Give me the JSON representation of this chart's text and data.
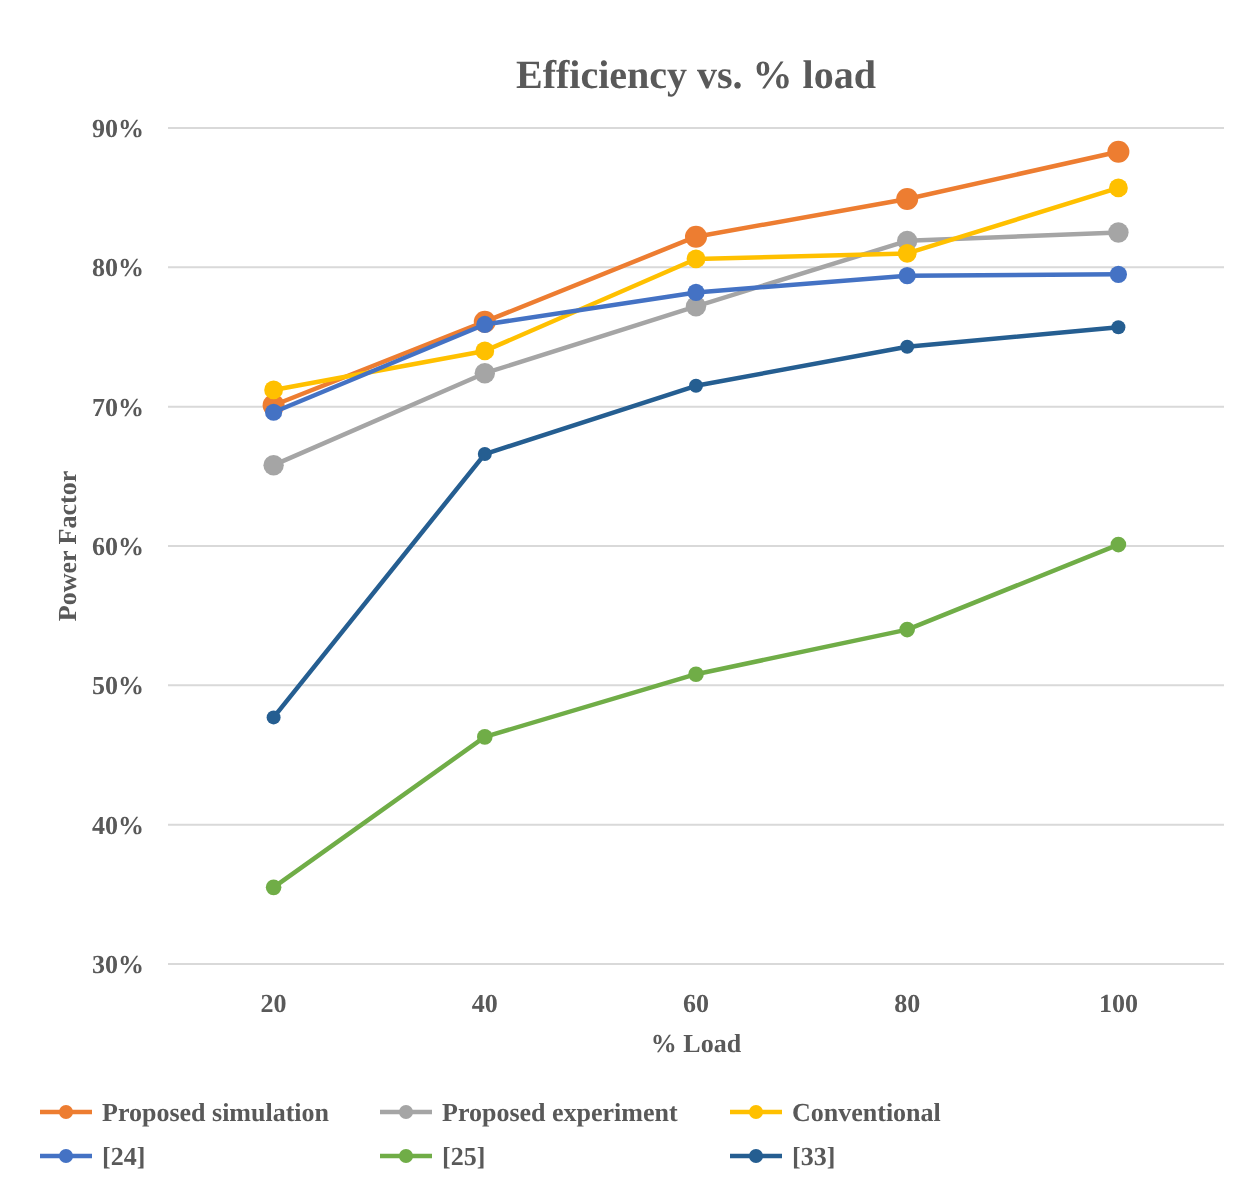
{
  "chart_data": {
    "type": "line",
    "title": "Efficiency vs. % load",
    "xlabel": "% Load",
    "ylabel": "Power Factor",
    "categories": [
      "20",
      "40",
      "60",
      "80",
      "100"
    ],
    "series": [
      {
        "name": "Proposed simulation",
        "color": "#ed7d31",
        "values": [
          70.1,
          76.1,
          82.2,
          84.9,
          88.3
        ]
      },
      {
        "name": "Proposed experiment",
        "color": "#a5a5a5",
        "values": [
          65.8,
          72.4,
          77.2,
          81.9,
          82.5
        ]
      },
      {
        "name": "Conventional",
        "color": "#ffc000",
        "values": [
          71.2,
          74.0,
          80.6,
          81.0,
          85.7
        ]
      },
      {
        "name": "[24]",
        "color": "#4472c4",
        "values": [
          69.6,
          75.9,
          78.2,
          79.4,
          79.5
        ]
      },
      {
        "name": "[25]",
        "color": "#70ad47",
        "values": [
          35.5,
          46.3,
          50.8,
          54.0,
          60.1
        ]
      },
      {
        "name": "[33]",
        "color": "#255e91",
        "values": [
          47.7,
          66.6,
          71.5,
          74.3,
          75.7
        ]
      }
    ],
    "ylim": [
      30,
      90
    ],
    "yticks": [
      {
        "value": 30,
        "label": "30%"
      },
      {
        "value": 40,
        "label": "40%"
      },
      {
        "value": 50,
        "label": "50%"
      },
      {
        "value": 60,
        "label": "60%"
      },
      {
        "value": 70,
        "label": "70%"
      },
      {
        "value": 80,
        "label": "80%"
      },
      {
        "value": 90,
        "label": "90%"
      }
    ],
    "grid": "y",
    "legend": "bottom",
    "marker": "circle",
    "line_style": "solid"
  }
}
